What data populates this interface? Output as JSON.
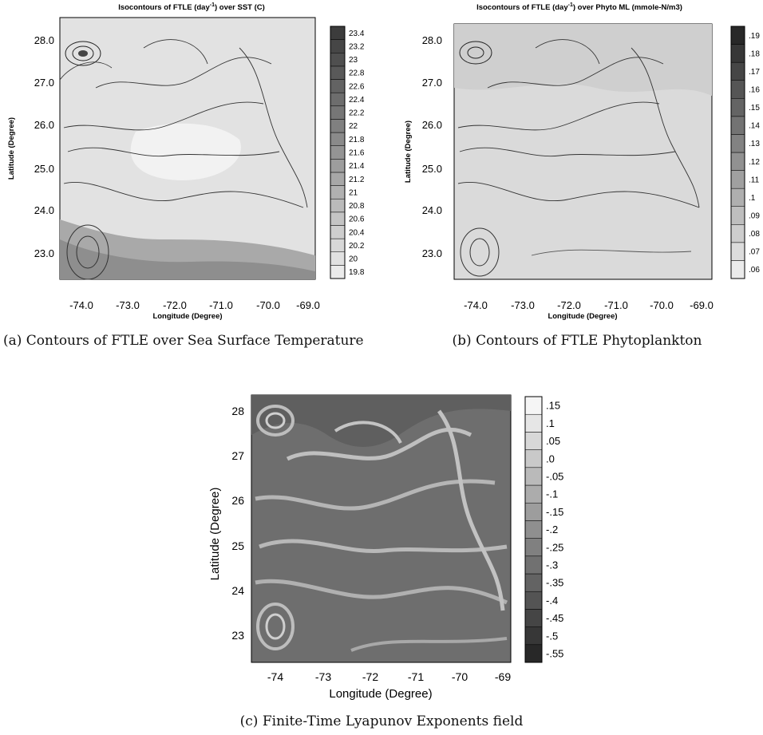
{
  "figure_a": {
    "title_pre": "Isocontours of FTLE (day",
    "title_sup": "-1",
    "title_post": ") over SST (C)",
    "xlabel": "Longitude (Degree)",
    "ylabel": "Latitude (Degree)",
    "xticks": [
      "-74.0",
      "-73.0",
      "-72.0",
      "-71.0",
      "-70.0",
      "-69.0"
    ],
    "yticks": [
      "28.0",
      "27.0",
      "26.0",
      "25.0",
      "24.0",
      "23.0"
    ],
    "colorbar": [
      "23.4",
      "23.2",
      "23",
      "22.8",
      "22.6",
      "22.4",
      "22.2",
      "22",
      "21.8",
      "21.6",
      "21.4",
      "21.2",
      "21",
      "20.8",
      "20.6",
      "20.4",
      "20.2",
      "20",
      "19.8"
    ],
    "caption": "(a) Contours of FTLE over Sea Surface Temperature"
  },
  "figure_b": {
    "title_pre": "Isocontours of FTLE (day",
    "title_sup": "-1",
    "title_post": ") over Phyto ML (mmole-N/m3)",
    "xlabel": "Longitude (Degree)",
    "ylabel": "Latitude (Degree)",
    "xticks": [
      "-74.0",
      "-73.0",
      "-72.0",
      "-71.0",
      "-70.0",
      "-69.0"
    ],
    "yticks": [
      "28.0",
      "27.0",
      "26.0",
      "25.0",
      "24.0",
      "23.0"
    ],
    "colorbar": [
      ".19",
      ".18",
      ".17",
      ".16",
      ".15",
      ".14",
      ".13",
      ".12",
      ".11",
      ".1",
      ".09",
      ".08",
      ".07",
      ".06"
    ],
    "caption": "(b) Contours of FTLE Phytoplankton"
  },
  "figure_c": {
    "xlabel": "Longitude (Degree)",
    "ylabel": "Latitude (Degree)",
    "xticks": [
      "-74",
      "-73",
      "-72",
      "-71",
      "-70",
      "-69"
    ],
    "yticks": [
      "28",
      "27",
      "26",
      "25",
      "24",
      "23"
    ],
    "colorbar": [
      ".15",
      ".1",
      ".05",
      ".0",
      "-.05",
      "-.1",
      "-.15",
      "-.2",
      "-.25",
      "-.3",
      "-.35",
      "-.4",
      "-.45",
      "-.5",
      "-.55"
    ],
    "caption": "(c) Finite-Time Lyapunov Exponents field"
  }
}
